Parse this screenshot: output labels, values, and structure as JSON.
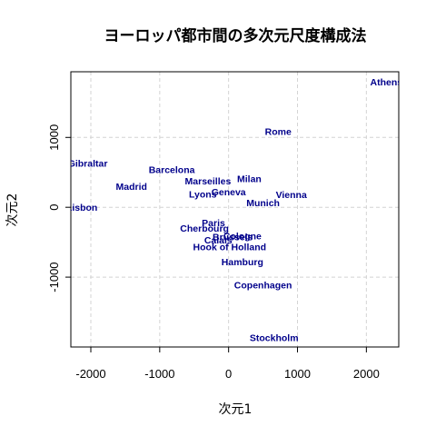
{
  "chart_data": {
    "type": "scatter",
    "title": "ヨーロッパ都市間の多次元尺度構成法",
    "xlabel": "次元1",
    "ylabel": "次元2",
    "xlim": [
      -2290,
      2470
    ],
    "ylim": [
      -2000,
      1940
    ],
    "xticks": [
      -2000,
      -1000,
      0,
      1000,
      2000
    ],
    "yticks": [
      -1000,
      0,
      1000
    ],
    "grid": true,
    "label_color": "#00008b",
    "points": [
      {
        "label": "Athens",
        "x": 2290,
        "y": 1800
      },
      {
        "label": "Barcelona",
        "x": -825,
        "y": 545
      },
      {
        "label": "Brussels",
        "x": 60,
        "y": -420
      },
      {
        "label": "Calais",
        "x": -150,
        "y": -465
      },
      {
        "label": "Cherbourg",
        "x": -350,
        "y": -295
      },
      {
        "label": "Cologne",
        "x": 200,
        "y": -410
      },
      {
        "label": "Copenhagen",
        "x": 500,
        "y": -1110
      },
      {
        "label": "Geneva",
        "x": 0,
        "y": 225
      },
      {
        "label": "Gibraltar",
        "x": -2045,
        "y": 630
      },
      {
        "label": "Hamburg",
        "x": 200,
        "y": -780
      },
      {
        "label": "Hook of Holland",
        "x": 15,
        "y": -560
      },
      {
        "label": "Lisbon",
        "x": -2130,
        "y": 0
      },
      {
        "label": "Lyons",
        "x": -375,
        "y": 190
      },
      {
        "label": "Madrid",
        "x": -1410,
        "y": 300
      },
      {
        "label": "Marseilles",
        "x": -300,
        "y": 380
      },
      {
        "label": "Milan",
        "x": 300,
        "y": 410
      },
      {
        "label": "Munich",
        "x": 500,
        "y": 65
      },
      {
        "label": "Paris",
        "x": -220,
        "y": -220
      },
      {
        "label": "Rome",
        "x": 720,
        "y": 1090
      },
      {
        "label": "Stockholm",
        "x": 660,
        "y": -1865
      },
      {
        "label": "Vienna",
        "x": 910,
        "y": 185
      }
    ]
  }
}
